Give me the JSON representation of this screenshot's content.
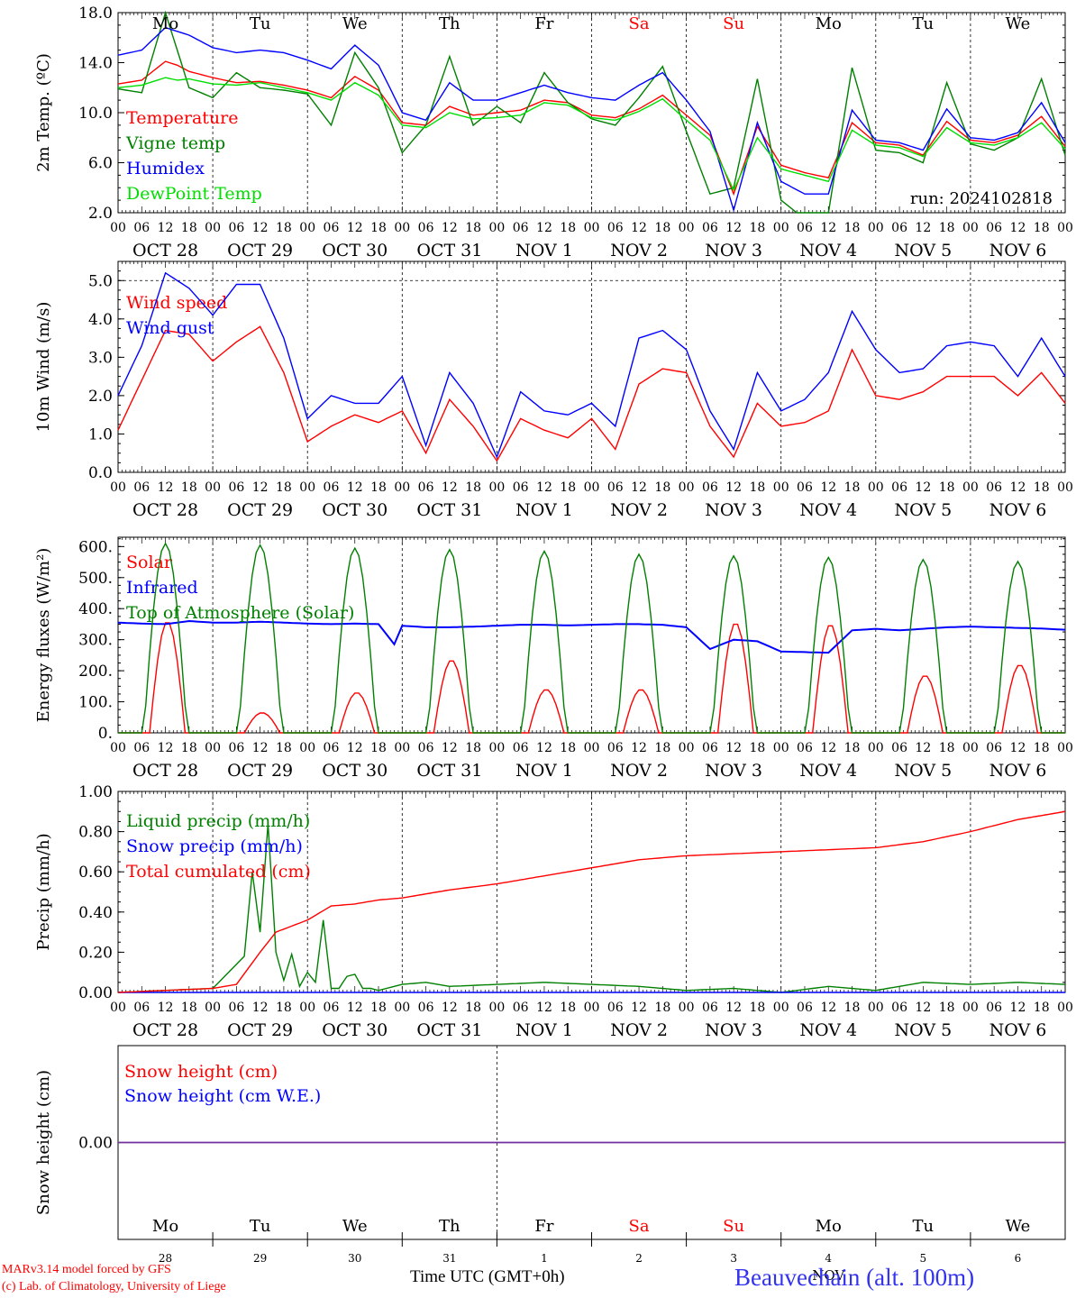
{
  "run_label": "run: 2024102818",
  "weekdays": [
    {
      "label": "Mo",
      "color": "#000000"
    },
    {
      "label": "Tu",
      "color": "#000000"
    },
    {
      "label": "We",
      "color": "#000000"
    },
    {
      "label": "Th",
      "color": "#000000"
    },
    {
      "label": "Fr",
      "color": "#000000"
    },
    {
      "label": "Sa",
      "color": "#ff0000"
    },
    {
      "label": "Su",
      "color": "#ff0000"
    },
    {
      "label": "Mo",
      "color": "#000000"
    },
    {
      "label": "Tu",
      "color": "#000000"
    },
    {
      "label": "We",
      "color": "#000000"
    }
  ],
  "date_labels": [
    "OCT 28",
    "OCT 29",
    "OCT 30",
    "OCT 31",
    "NOV  1",
    "NOV  2",
    "NOV  3",
    "NOV  4",
    "NOV  5",
    "NOV  6"
  ],
  "hour_labels": [
    "00",
    "06",
    "12",
    "18"
  ],
  "day_numbers": [
    "28",
    "29",
    "30",
    "31",
    "1",
    "2",
    "3",
    "4",
    "5",
    "6"
  ],
  "month_label": "NOV",
  "footer": {
    "model": "MARv3.14 model forced by GFS",
    "lab": "(c) Lab. of Climatology, University of Liege",
    "xlabel": "Time UTC (GMT+0h)",
    "station": "Beauvechain (alt. 100m)"
  },
  "colors": {
    "red": "#ff0000",
    "green": "#008000",
    "blue": "#0000ff",
    "lightgreen": "#00dd00",
    "purple": "#7030a0"
  },
  "chart_data": [
    {
      "type": "line",
      "ylabel": "2m Temp. (ºC)",
      "ylim": [
        2,
        18
      ],
      "yticks": [
        "2.0",
        "6.0",
        "10.0",
        "14.0",
        "18.0"
      ],
      "yvals": [
        2,
        6,
        10,
        14,
        18
      ],
      "x_unit": "hours since OCT 28 00 UTC",
      "series": [
        {
          "name": "Temperature",
          "color": "#ff0000",
          "x": [
            0,
            6,
            12,
            15,
            18,
            24,
            30,
            36,
            42,
            48,
            54,
            60,
            66,
            72,
            78,
            84,
            90,
            96,
            102,
            108,
            114,
            120,
            126,
            132,
            138,
            144,
            150,
            156,
            162,
            168,
            174,
            180,
            186,
            192,
            198,
            204,
            210,
            216,
            222,
            228,
            234,
            240
          ],
          "y": [
            12.3,
            12.6,
            14.1,
            13.8,
            13.3,
            12.8,
            12.4,
            12.5,
            12.2,
            11.8,
            11.2,
            12.9,
            11.8,
            9.2,
            9.0,
            10.5,
            9.8,
            10.0,
            10.2,
            11.0,
            10.8,
            9.8,
            9.6,
            10.3,
            11.4,
            9.8,
            8.2,
            3.5,
            8.9,
            5.8,
            5.2,
            4.8,
            9.2,
            7.6,
            7.4,
            6.6,
            9.3,
            7.8,
            7.6,
            8.2,
            9.7,
            7.3
          ]
        },
        {
          "name": "Vigne temp",
          "color": "#008000",
          "x": [
            0,
            6,
            12,
            15,
            18,
            24,
            30,
            36,
            42,
            48,
            54,
            60,
            66,
            72,
            78,
            84,
            90,
            96,
            102,
            108,
            114,
            120,
            126,
            132,
            138,
            144,
            150,
            156,
            162,
            168,
            174,
            180,
            186,
            192,
            198,
            204,
            210,
            216,
            222,
            228,
            234,
            240
          ],
          "y": [
            11.9,
            11.6,
            18.0,
            15.0,
            12.0,
            11.2,
            13.2,
            12.0,
            11.8,
            11.5,
            9.0,
            14.8,
            12.0,
            6.8,
            9.0,
            14.5,
            9.0,
            10.5,
            9.2,
            13.2,
            10.8,
            9.5,
            9.0,
            11.2,
            13.7,
            8.5,
            3.5,
            4.0,
            12.7,
            3.0,
            1.5,
            2.0,
            13.6,
            7.0,
            6.8,
            6.0,
            12.4,
            7.5,
            7.0,
            8.0,
            12.7,
            6.6
          ]
        },
        {
          "name": "Humidex",
          "color": "#0000ff",
          "x": [
            0,
            6,
            12,
            15,
            18,
            24,
            30,
            36,
            42,
            48,
            54,
            60,
            66,
            72,
            78,
            84,
            90,
            96,
            102,
            108,
            114,
            120,
            126,
            132,
            138,
            144,
            150,
            156,
            162,
            168,
            174,
            180,
            186,
            192,
            198,
            204,
            210,
            216,
            222,
            228,
            234,
            240
          ],
          "y": [
            14.6,
            15.0,
            16.8,
            16.5,
            16.2,
            15.2,
            14.8,
            15.0,
            14.8,
            14.2,
            13.5,
            15.4,
            13.8,
            10.0,
            9.4,
            12.4,
            11.0,
            11.0,
            11.6,
            12.2,
            11.6,
            11.2,
            11.0,
            12.2,
            13.2,
            11.0,
            8.5,
            2.2,
            9.2,
            4.5,
            3.5,
            3.5,
            10.2,
            7.8,
            7.6,
            7.0,
            10.3,
            8.0,
            7.8,
            8.4,
            10.8,
            7.6
          ]
        },
        {
          "name": "DewPoint Temp",
          "color": "#00dd00",
          "x": [
            0,
            6,
            12,
            15,
            18,
            24,
            30,
            36,
            42,
            48,
            54,
            60,
            66,
            72,
            78,
            84,
            90,
            96,
            102,
            108,
            114,
            120,
            126,
            132,
            138,
            144,
            150,
            156,
            162,
            168,
            174,
            180,
            186,
            192,
            198,
            204,
            210,
            216,
            222,
            228,
            234,
            240
          ],
          "y": [
            12.0,
            12.2,
            12.8,
            12.6,
            12.7,
            12.3,
            12.2,
            12.4,
            12.0,
            11.6,
            11.0,
            12.4,
            11.4,
            9.0,
            8.8,
            10.0,
            9.5,
            9.6,
            9.8,
            10.8,
            10.6,
            9.6,
            9.4,
            10.1,
            11.1,
            9.4,
            7.8,
            3.8,
            8.0,
            5.5,
            5.0,
            4.5,
            8.6,
            7.4,
            7.2,
            6.5,
            8.8,
            7.6,
            7.4,
            8.0,
            9.2,
            7.1
          ]
        }
      ]
    },
    {
      "type": "line",
      "ylabel": "10m Wind (m/s)",
      "ylim": [
        0,
        5.5
      ],
      "yticks": [
        "0.0",
        "1.0",
        "2.0",
        "3.0",
        "4.0",
        "5.0"
      ],
      "yvals": [
        0,
        1,
        2,
        3,
        4,
        5
      ],
      "series": [
        {
          "name": "Wind speed",
          "color": "#ff0000",
          "x": [
            0,
            6,
            12,
            18,
            24,
            30,
            36,
            42,
            48,
            54,
            60,
            66,
            72,
            78,
            84,
            90,
            96,
            102,
            108,
            114,
            120,
            126,
            132,
            138,
            144,
            150,
            156,
            162,
            168,
            174,
            180,
            186,
            192,
            198,
            204,
            210,
            216,
            222,
            228,
            234,
            240
          ],
          "y": [
            1.1,
            2.4,
            3.7,
            3.6,
            2.9,
            3.4,
            3.8,
            2.6,
            0.8,
            1.2,
            1.5,
            1.3,
            1.6,
            0.5,
            1.9,
            1.2,
            0.3,
            1.4,
            1.1,
            0.9,
            1.4,
            0.6,
            2.3,
            2.7,
            2.6,
            1.2,
            0.4,
            1.8,
            1.2,
            1.3,
            1.6,
            3.2,
            2.0,
            1.9,
            2.1,
            2.5,
            2.5,
            2.5,
            2.0,
            2.6,
            1.8
          ]
        },
        {
          "name": "Wind gust",
          "color": "#0000ff",
          "x": [
            0,
            6,
            12,
            18,
            24,
            30,
            36,
            42,
            48,
            54,
            60,
            66,
            72,
            78,
            84,
            90,
            96,
            102,
            108,
            114,
            120,
            126,
            132,
            138,
            144,
            150,
            156,
            162,
            168,
            174,
            180,
            186,
            192,
            198,
            204,
            210,
            216,
            222,
            228,
            234,
            240
          ],
          "y": [
            2.0,
            3.3,
            5.2,
            4.8,
            4.1,
            4.9,
            4.9,
            3.5,
            1.4,
            2.0,
            1.8,
            1.8,
            2.5,
            0.7,
            2.6,
            1.8,
            0.4,
            2.1,
            1.6,
            1.5,
            1.8,
            1.2,
            3.5,
            3.7,
            3.2,
            1.6,
            0.6,
            2.6,
            1.6,
            1.9,
            2.6,
            4.2,
            3.2,
            2.6,
            2.7,
            3.3,
            3.4,
            3.3,
            2.5,
            3.5,
            2.5
          ]
        }
      ]
    },
    {
      "type": "line",
      "ylabel": "Energy fluxes (W/m²)",
      "ylim": [
        0,
        630
      ],
      "yticks": [
        "0.",
        "100.",
        "200.",
        "300.",
        "400.",
        "500.",
        "600."
      ],
      "yvals": [
        0,
        100,
        200,
        300,
        400,
        500,
        600
      ],
      "series": [
        {
          "name": "Solar",
          "color": "#ff0000",
          "peaks": [
            360,
            65,
            130,
            235,
            140,
            140,
            355,
            350,
            185,
            220
          ]
        },
        {
          "name": "Infrared",
          "color": "#0000ff",
          "x": [
            0,
            6,
            12,
            18,
            24,
            30,
            36,
            42,
            48,
            54,
            60,
            66,
            70,
            72,
            78,
            84,
            90,
            96,
            102,
            108,
            114,
            120,
            126,
            132,
            138,
            144,
            150,
            156,
            162,
            168,
            174,
            180,
            186,
            192,
            198,
            204,
            210,
            216,
            222,
            228,
            234,
            240
          ],
          "y": [
            355,
            352,
            350,
            360,
            355,
            355,
            358,
            355,
            352,
            350,
            352,
            350,
            285,
            345,
            340,
            340,
            342,
            345,
            348,
            348,
            346,
            348,
            350,
            350,
            348,
            340,
            270,
            300,
            295,
            262,
            260,
            258,
            330,
            335,
            330,
            335,
            340,
            342,
            340,
            338,
            336,
            332
          ]
        },
        {
          "name": "Top of Atmosphere (Solar)",
          "color": "#008000",
          "peaks": [
            610,
            605,
            595,
            590,
            585,
            575,
            570,
            565,
            558,
            552
          ]
        }
      ]
    },
    {
      "type": "line",
      "ylabel": "Precip (mm/h)",
      "ylim": [
        0,
        1.0
      ],
      "yticks": [
        "0.00",
        "0.20",
        "0.40",
        "0.60",
        "0.80",
        "1.00"
      ],
      "yvals": [
        0,
        0.2,
        0.4,
        0.6,
        0.8,
        1.0
      ],
      "series": [
        {
          "name": "Liquid precip (mm/h)",
          "color": "#008000",
          "x": [
            0,
            12,
            24,
            32,
            34,
            36,
            38,
            40,
            42,
            44,
            46,
            48,
            50,
            52,
            54,
            56,
            58,
            60,
            62,
            64,
            66,
            72,
            78,
            84,
            96,
            108,
            120,
            132,
            144,
            156,
            168,
            180,
            192,
            204,
            216,
            228,
            240
          ],
          "y": [
            0.0,
            0.01,
            0.02,
            0.18,
            0.6,
            0.3,
            0.84,
            0.2,
            0.06,
            0.19,
            0.03,
            0.1,
            0.05,
            0.36,
            0.02,
            0.02,
            0.08,
            0.09,
            0.02,
            0.02,
            0.01,
            0.04,
            0.05,
            0.03,
            0.04,
            0.05,
            0.04,
            0.03,
            0.01,
            0.02,
            0.0,
            0.03,
            0.01,
            0.05,
            0.04,
            0.05,
            0.04
          ]
        },
        {
          "name": "Snow precip (mm/h)",
          "color": "#0000ff",
          "x": [
            0,
            240
          ],
          "y": [
            0,
            0
          ]
        },
        {
          "name": "Total cumulated (cm)",
          "color": "#ff0000",
          "x": [
            0,
            24,
            30,
            36,
            40,
            44,
            48,
            54,
            60,
            66,
            72,
            84,
            96,
            108,
            120,
            132,
            144,
            156,
            168,
            180,
            192,
            204,
            216,
            228,
            240
          ],
          "y": [
            0.0,
            0.02,
            0.04,
            0.2,
            0.3,
            0.33,
            0.36,
            0.43,
            0.44,
            0.46,
            0.47,
            0.51,
            0.54,
            0.58,
            0.62,
            0.66,
            0.68,
            0.69,
            0.7,
            0.71,
            0.72,
            0.75,
            0.8,
            0.86,
            0.9
          ]
        }
      ]
    },
    {
      "type": "line",
      "ylabel": "Snow height (cm)",
      "yticks": [
        "0.00"
      ],
      "yvals": [
        0
      ],
      "series": [
        {
          "name": "Snow height (cm)",
          "color": "#ff0000",
          "x": [
            0,
            240
          ],
          "y": [
            0,
            0
          ]
        },
        {
          "name": "Snow height (cm W.E.)",
          "color": "#0000ff",
          "x": [
            0,
            240
          ],
          "y": [
            0,
            0
          ]
        }
      ]
    }
  ]
}
